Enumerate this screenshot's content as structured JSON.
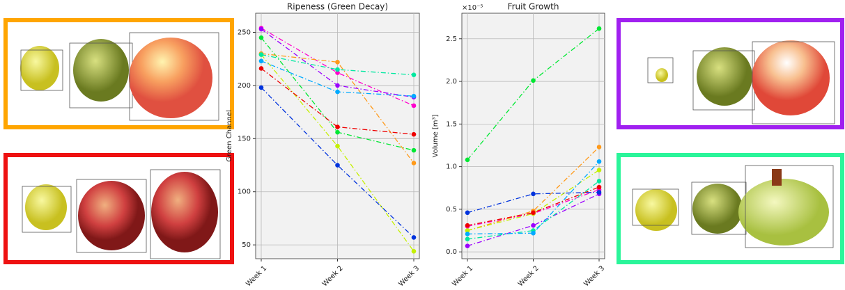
{
  "chart_data": [
    {
      "type": "line",
      "title": "Ripeness (Green Decay)",
      "y_label": "Green Channel",
      "categories": [
        "Week 1",
        "Week 2",
        "Week 3"
      ],
      "ylim": [
        37,
        268
      ],
      "yticks": [
        50,
        100,
        150,
        200,
        250
      ],
      "grid": true,
      "series": [
        {
          "color": "#ff00cc",
          "values": [
            254,
            212,
            181
          ]
        },
        {
          "color": "#9b00ff",
          "values": [
            253,
            200,
            189
          ]
        },
        {
          "color": "#00e833",
          "values": [
            245,
            156,
            139
          ]
        },
        {
          "color": "#ff9a1a",
          "values": [
            230,
            222,
            127
          ]
        },
        {
          "color": "#c4f000",
          "values": [
            229,
            143,
            44
          ]
        },
        {
          "color": "#00e8a0",
          "values": [
            229,
            215,
            210
          ]
        },
        {
          "color": "#00aaff",
          "values": [
            223,
            194,
            190
          ]
        },
        {
          "color": "#ee0000",
          "values": [
            216,
            161,
            154
          ]
        },
        {
          "color": "#0033dd",
          "values": [
            198,
            125,
            57
          ]
        }
      ]
    },
    {
      "type": "line",
      "title": "Fruit Growth",
      "y_label": "Volume [m³]",
      "y_offset_label": "×10⁻⁵",
      "categories": [
        "Week 1",
        "Week 2",
        "Week 3"
      ],
      "ylim": [
        -0.08,
        2.8
      ],
      "yticks": [
        {
          "value": 0,
          "label": "0.0"
        },
        0.5,
        {
          "value": 1,
          "label": "1.0"
        },
        1.5,
        {
          "value": 2,
          "label": "2.0"
        },
        2.5
      ],
      "grid": true,
      "series": [
        {
          "color": "#ff00cc",
          "values": [
            0.3,
            0.45,
            0.73
          ]
        },
        {
          "color": "#9b00ff",
          "values": [
            0.07,
            0.31,
            0.68
          ]
        },
        {
          "color": "#00e833",
          "values": [
            1.08,
            2.01,
            2.62
          ]
        },
        {
          "color": "#ff9a1a",
          "values": [
            0.25,
            0.48,
            1.23
          ]
        },
        {
          "color": "#c4f000",
          "values": [
            0.25,
            0.45,
            0.96
          ]
        },
        {
          "color": "#00e8a0",
          "values": [
            0.15,
            0.25,
            0.83
          ]
        },
        {
          "color": "#00aaff",
          "values": [
            0.21,
            0.22,
            1.06
          ]
        },
        {
          "color": "#ee0000",
          "values": [
            0.31,
            0.46,
            0.76
          ]
        },
        {
          "color": "#0033dd",
          "values": [
            0.46,
            0.68,
            0.7
          ]
        }
      ]
    }
  ]
}
